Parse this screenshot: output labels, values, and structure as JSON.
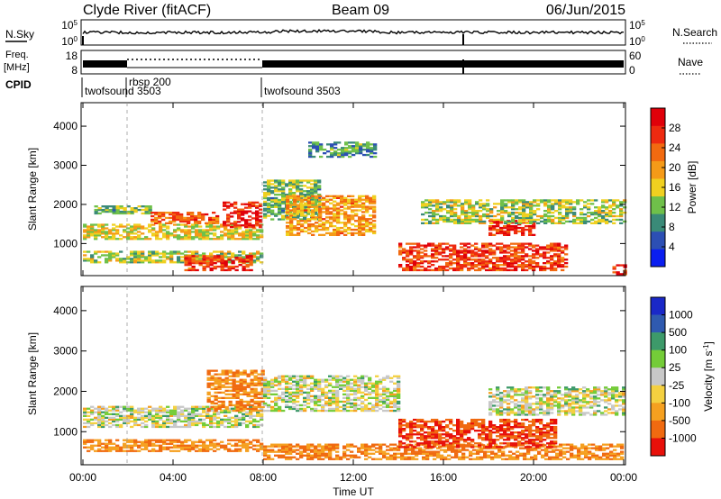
{
  "header": {
    "station": "Clyde River (fitACF)",
    "beam": "Beam 09",
    "date": "06/Jun/2015"
  },
  "strip_labels": {
    "nsky": "N.Sky",
    "nsky_top": "10^5",
    "nsky_bottom": "10^0",
    "nsearch": "N.Search",
    "nsearch_top": "10^5",
    "nsearch_bottom": "10^0",
    "freq_line1": "Freq.",
    "freq_line2": "[MHz]",
    "freq_top": "18",
    "freq_bottom": "8",
    "nave": "Nave",
    "nave_top": "60",
    "nave_bottom": "0",
    "cpid": "CPID"
  },
  "cpid_segments": [
    {
      "start": "00:00",
      "label": "twofsound 3503"
    },
    {
      "start": "01:55",
      "label": "rbsp 200"
    },
    {
      "start": "07:55",
      "label": "twofsound 3503"
    }
  ],
  "colors": {
    "power": [
      "#0a1ef0",
      "#2c4fb4",
      "#3a8a78",
      "#6fc04a",
      "#f0d020",
      "#f59a18",
      "#f26a10",
      "#ee2a10",
      "#e0000a"
    ],
    "velocity": [
      "#1a28c8",
      "#2f5ab0",
      "#3d9a6a",
      "#74cc38",
      "#c8c8c8",
      "#f4d040",
      "#f5a020",
      "#f06a10",
      "#e8100a"
    ]
  },
  "chart_data": [
    {
      "type": "heatmap",
      "panel": "power",
      "ylabel": "Slant Range [km]",
      "ylim": [
        180,
        4600
      ],
      "yticks": [
        "1000",
        "2000",
        "3000",
        "4000"
      ],
      "xlim": [
        "00:00",
        "24:00"
      ],
      "colorbar": {
        "label": "Power [dB]",
        "range": [
          0,
          32
        ],
        "ticks": [
          "4",
          "8",
          "12",
          "16",
          "20",
          "24",
          "28"
        ]
      },
      "bands": [
        {
          "t": [
            0.0,
            8.0
          ],
          "range": [
            1100,
            1500
          ],
          "value": 16
        },
        {
          "t": [
            0.0,
            8.0
          ],
          "range": [
            500,
            800
          ],
          "value": 14
        },
        {
          "t": [
            0.5,
            3.0
          ],
          "range": [
            1750,
            1950
          ],
          "value": 12
        },
        {
          "t": [
            6.2,
            7.9
          ],
          "range": [
            1400,
            2050
          ],
          "value": 28
        },
        {
          "t": [
            3.0,
            6.0
          ],
          "range": [
            1500,
            1800
          ],
          "value": 24
        },
        {
          "t": [
            4.5,
            7.5
          ],
          "range": [
            300,
            700
          ],
          "value": 26
        },
        {
          "t": [
            8.0,
            10.5
          ],
          "range": [
            1600,
            2600
          ],
          "value": 12
        },
        {
          "t": [
            9.0,
            13.0
          ],
          "range": [
            1200,
            2200
          ],
          "value": 20
        },
        {
          "t": [
            10.0,
            13.0
          ],
          "range": [
            3200,
            3600
          ],
          "value": 10
        },
        {
          "t": [
            14.0,
            21.5
          ],
          "range": [
            300,
            1000
          ],
          "value": 26
        },
        {
          "t": [
            18.0,
            20.0
          ],
          "range": [
            1200,
            1600
          ],
          "value": 28
        },
        {
          "t": [
            15.0,
            24.0
          ],
          "range": [
            1500,
            2100
          ],
          "value": 14
        },
        {
          "t": [
            23.5,
            24.0
          ],
          "range": [
            200,
            450
          ],
          "value": 28
        }
      ]
    },
    {
      "type": "heatmap",
      "panel": "velocity",
      "ylabel": "Slant Range [km]",
      "xlabel": "Time UT",
      "ylim": [
        180,
        4600
      ],
      "yticks": [
        "1000",
        "2000",
        "3000",
        "4000"
      ],
      "xticks": [
        "00:00",
        "04:00",
        "08:00",
        "12:00",
        "16:00",
        "20:00",
        "00:00"
      ],
      "xlim": [
        "00:00",
        "24:00"
      ],
      "colorbar": {
        "label": "Velocity [m s^-1]",
        "ticks": [
          "1000",
          "500",
          "100",
          "25",
          "-25",
          "-100",
          "-500",
          "-1000"
        ]
      },
      "bands": [
        {
          "t": [
            0.0,
            8.0
          ],
          "range": [
            1100,
            1600
          ],
          "value": 0
        },
        {
          "t": [
            0.0,
            8.0
          ],
          "range": [
            500,
            800
          ],
          "value": -300
        },
        {
          "t": [
            5.5,
            8.0
          ],
          "range": [
            1500,
            2500
          ],
          "value": -300
        },
        {
          "t": [
            8.0,
            14.0
          ],
          "range": [
            1500,
            2400
          ],
          "value": 0
        },
        {
          "t": [
            8.0,
            24.0
          ],
          "range": [
            300,
            700
          ],
          "value": -300
        },
        {
          "t": [
            14.0,
            21.0
          ],
          "range": [
            600,
            1300
          ],
          "value": -700
        },
        {
          "t": [
            18.0,
            24.0
          ],
          "range": [
            1400,
            2100
          ],
          "value": 0
        }
      ]
    }
  ]
}
